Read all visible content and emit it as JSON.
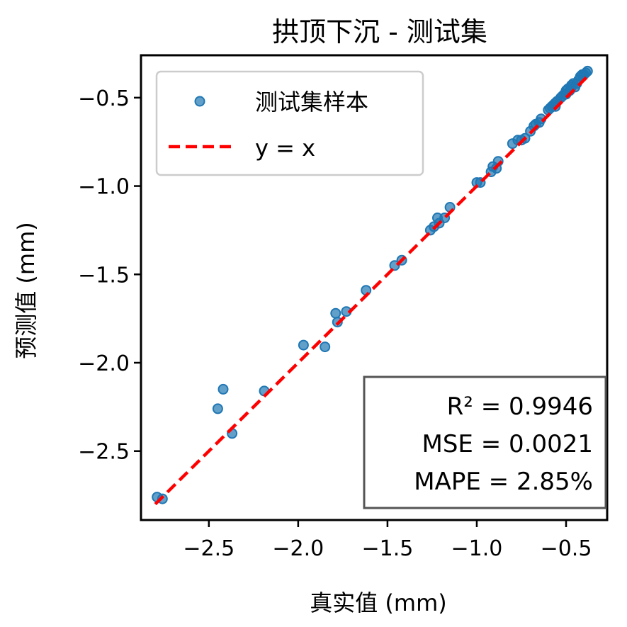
{
  "chart_data": {
    "type": "scatter",
    "title": "拱顶下沉 - 测试集",
    "xlabel": "真实值 (mm)",
    "ylabel": "预测值 (mm)",
    "xlim": [
      -2.88,
      -0.27
    ],
    "ylim": [
      -2.89,
      -0.26
    ],
    "xticks": [
      -2.5,
      -2.0,
      -1.5,
      -1.0,
      -0.5
    ],
    "yticks": [
      -2.5,
      -2.0,
      -1.5,
      -1.0,
      -0.5
    ],
    "xtick_labels": [
      "−2.5",
      "−2.0",
      "−1.5",
      "−1.0",
      "−0.5"
    ],
    "ytick_labels": [
      "−2.5",
      "−2.0",
      "−1.5",
      "−1.0",
      "−0.5"
    ],
    "grid": false,
    "legend_position": "top-left",
    "legend": [
      {
        "label": "测试集样本",
        "kind": "marker",
        "color": "#1f77b4"
      },
      {
        "label": "y = x",
        "kind": "dashed-line",
        "color": "#ff0000"
      }
    ],
    "series": [
      {
        "name": "测试集样本",
        "color": "#1f77b4",
        "points": [
          [
            -2.79,
            -2.76
          ],
          [
            -2.76,
            -2.77
          ],
          [
            -2.45,
            -2.26
          ],
          [
            -2.42,
            -2.15
          ],
          [
            -2.37,
            -2.4
          ],
          [
            -2.19,
            -2.16
          ],
          [
            -1.97,
            -1.9
          ],
          [
            -1.85,
            -1.91
          ],
          [
            -1.79,
            -1.72
          ],
          [
            -1.78,
            -1.77
          ],
          [
            -1.73,
            -1.71
          ],
          [
            -1.62,
            -1.59
          ],
          [
            -1.46,
            -1.45
          ],
          [
            -1.42,
            -1.42
          ],
          [
            -1.26,
            -1.25
          ],
          [
            -1.24,
            -1.23
          ],
          [
            -1.22,
            -1.18
          ],
          [
            -1.21,
            -1.21
          ],
          [
            -1.18,
            -1.18
          ],
          [
            -1.15,
            -1.12
          ],
          [
            -1.0,
            -0.98
          ],
          [
            -0.98,
            -0.98
          ],
          [
            -0.92,
            -0.92
          ],
          [
            -0.91,
            -0.89
          ],
          [
            -0.89,
            -0.9
          ],
          [
            -0.88,
            -0.86
          ],
          [
            -0.8,
            -0.76
          ],
          [
            -0.77,
            -0.74
          ],
          [
            -0.75,
            -0.74
          ],
          [
            -0.73,
            -0.73
          ],
          [
            -0.7,
            -0.69
          ],
          [
            -0.68,
            -0.66
          ],
          [
            -0.67,
            -0.65
          ],
          [
            -0.65,
            -0.64
          ],
          [
            -0.64,
            -0.62
          ],
          [
            -0.6,
            -0.57
          ],
          [
            -0.59,
            -0.56
          ],
          [
            -0.58,
            -0.55
          ],
          [
            -0.57,
            -0.54
          ],
          [
            -0.56,
            -0.55
          ],
          [
            -0.56,
            -0.53
          ],
          [
            -0.55,
            -0.52
          ],
          [
            -0.53,
            -0.5
          ],
          [
            -0.52,
            -0.49
          ],
          [
            -0.51,
            -0.48
          ],
          [
            -0.5,
            -0.48
          ],
          [
            -0.5,
            -0.46
          ],
          [
            -0.49,
            -0.45
          ],
          [
            -0.48,
            -0.46
          ],
          [
            -0.47,
            -0.44
          ],
          [
            -0.47,
            -0.43
          ],
          [
            -0.46,
            -0.42
          ],
          [
            -0.45,
            -0.44
          ],
          [
            -0.44,
            -0.42
          ],
          [
            -0.43,
            -0.4
          ],
          [
            -0.42,
            -0.38
          ],
          [
            -0.41,
            -0.37
          ],
          [
            -0.4,
            -0.37
          ],
          [
            -0.39,
            -0.36
          ],
          [
            -0.38,
            -0.35
          ]
        ]
      }
    ],
    "reference_line": {
      "name": "y = x",
      "from": [
        -2.8,
        -2.8
      ],
      "to": [
        -0.38,
        -0.38
      ],
      "color": "#ff0000"
    },
    "annotations": {
      "lines": [
        "R² = 0.9946",
        "MSE = 0.0021",
        "MAPE = 2.85%"
      ],
      "position": "bottom-right"
    }
  }
}
